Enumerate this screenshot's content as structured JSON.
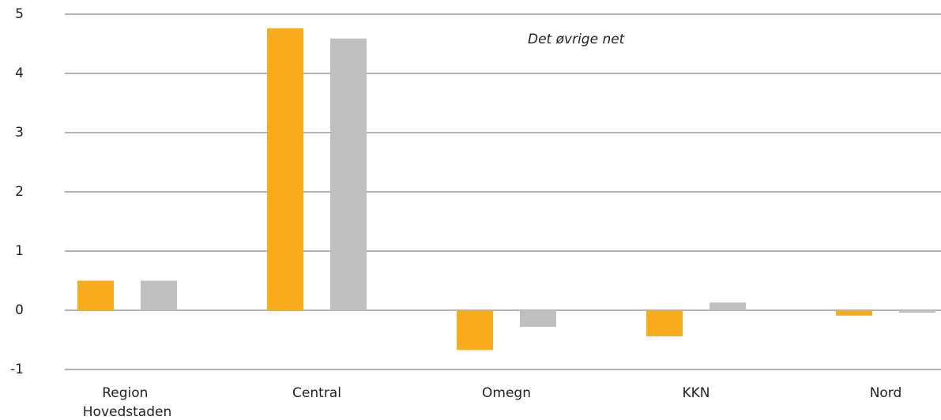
{
  "chart_data": {
    "type": "bar",
    "annotation": "Det øvrige net",
    "categories": [
      "Region Hovedstaden",
      "Central",
      "Omegn",
      "KKN",
      "Nord"
    ],
    "series": [
      {
        "color": "#f9ab1e",
        "values": [
          0.5,
          4.76,
          -0.67,
          -0.44,
          -0.09
        ]
      },
      {
        "color": "#bfbfbf",
        "values": [
          0.5,
          4.59,
          -0.28,
          0.13,
          -0.04
        ]
      }
    ],
    "ylim": [
      -1,
      5
    ],
    "yticks": [
      -1,
      0,
      1,
      2,
      3,
      4,
      5
    ],
    "grid": true
  }
}
